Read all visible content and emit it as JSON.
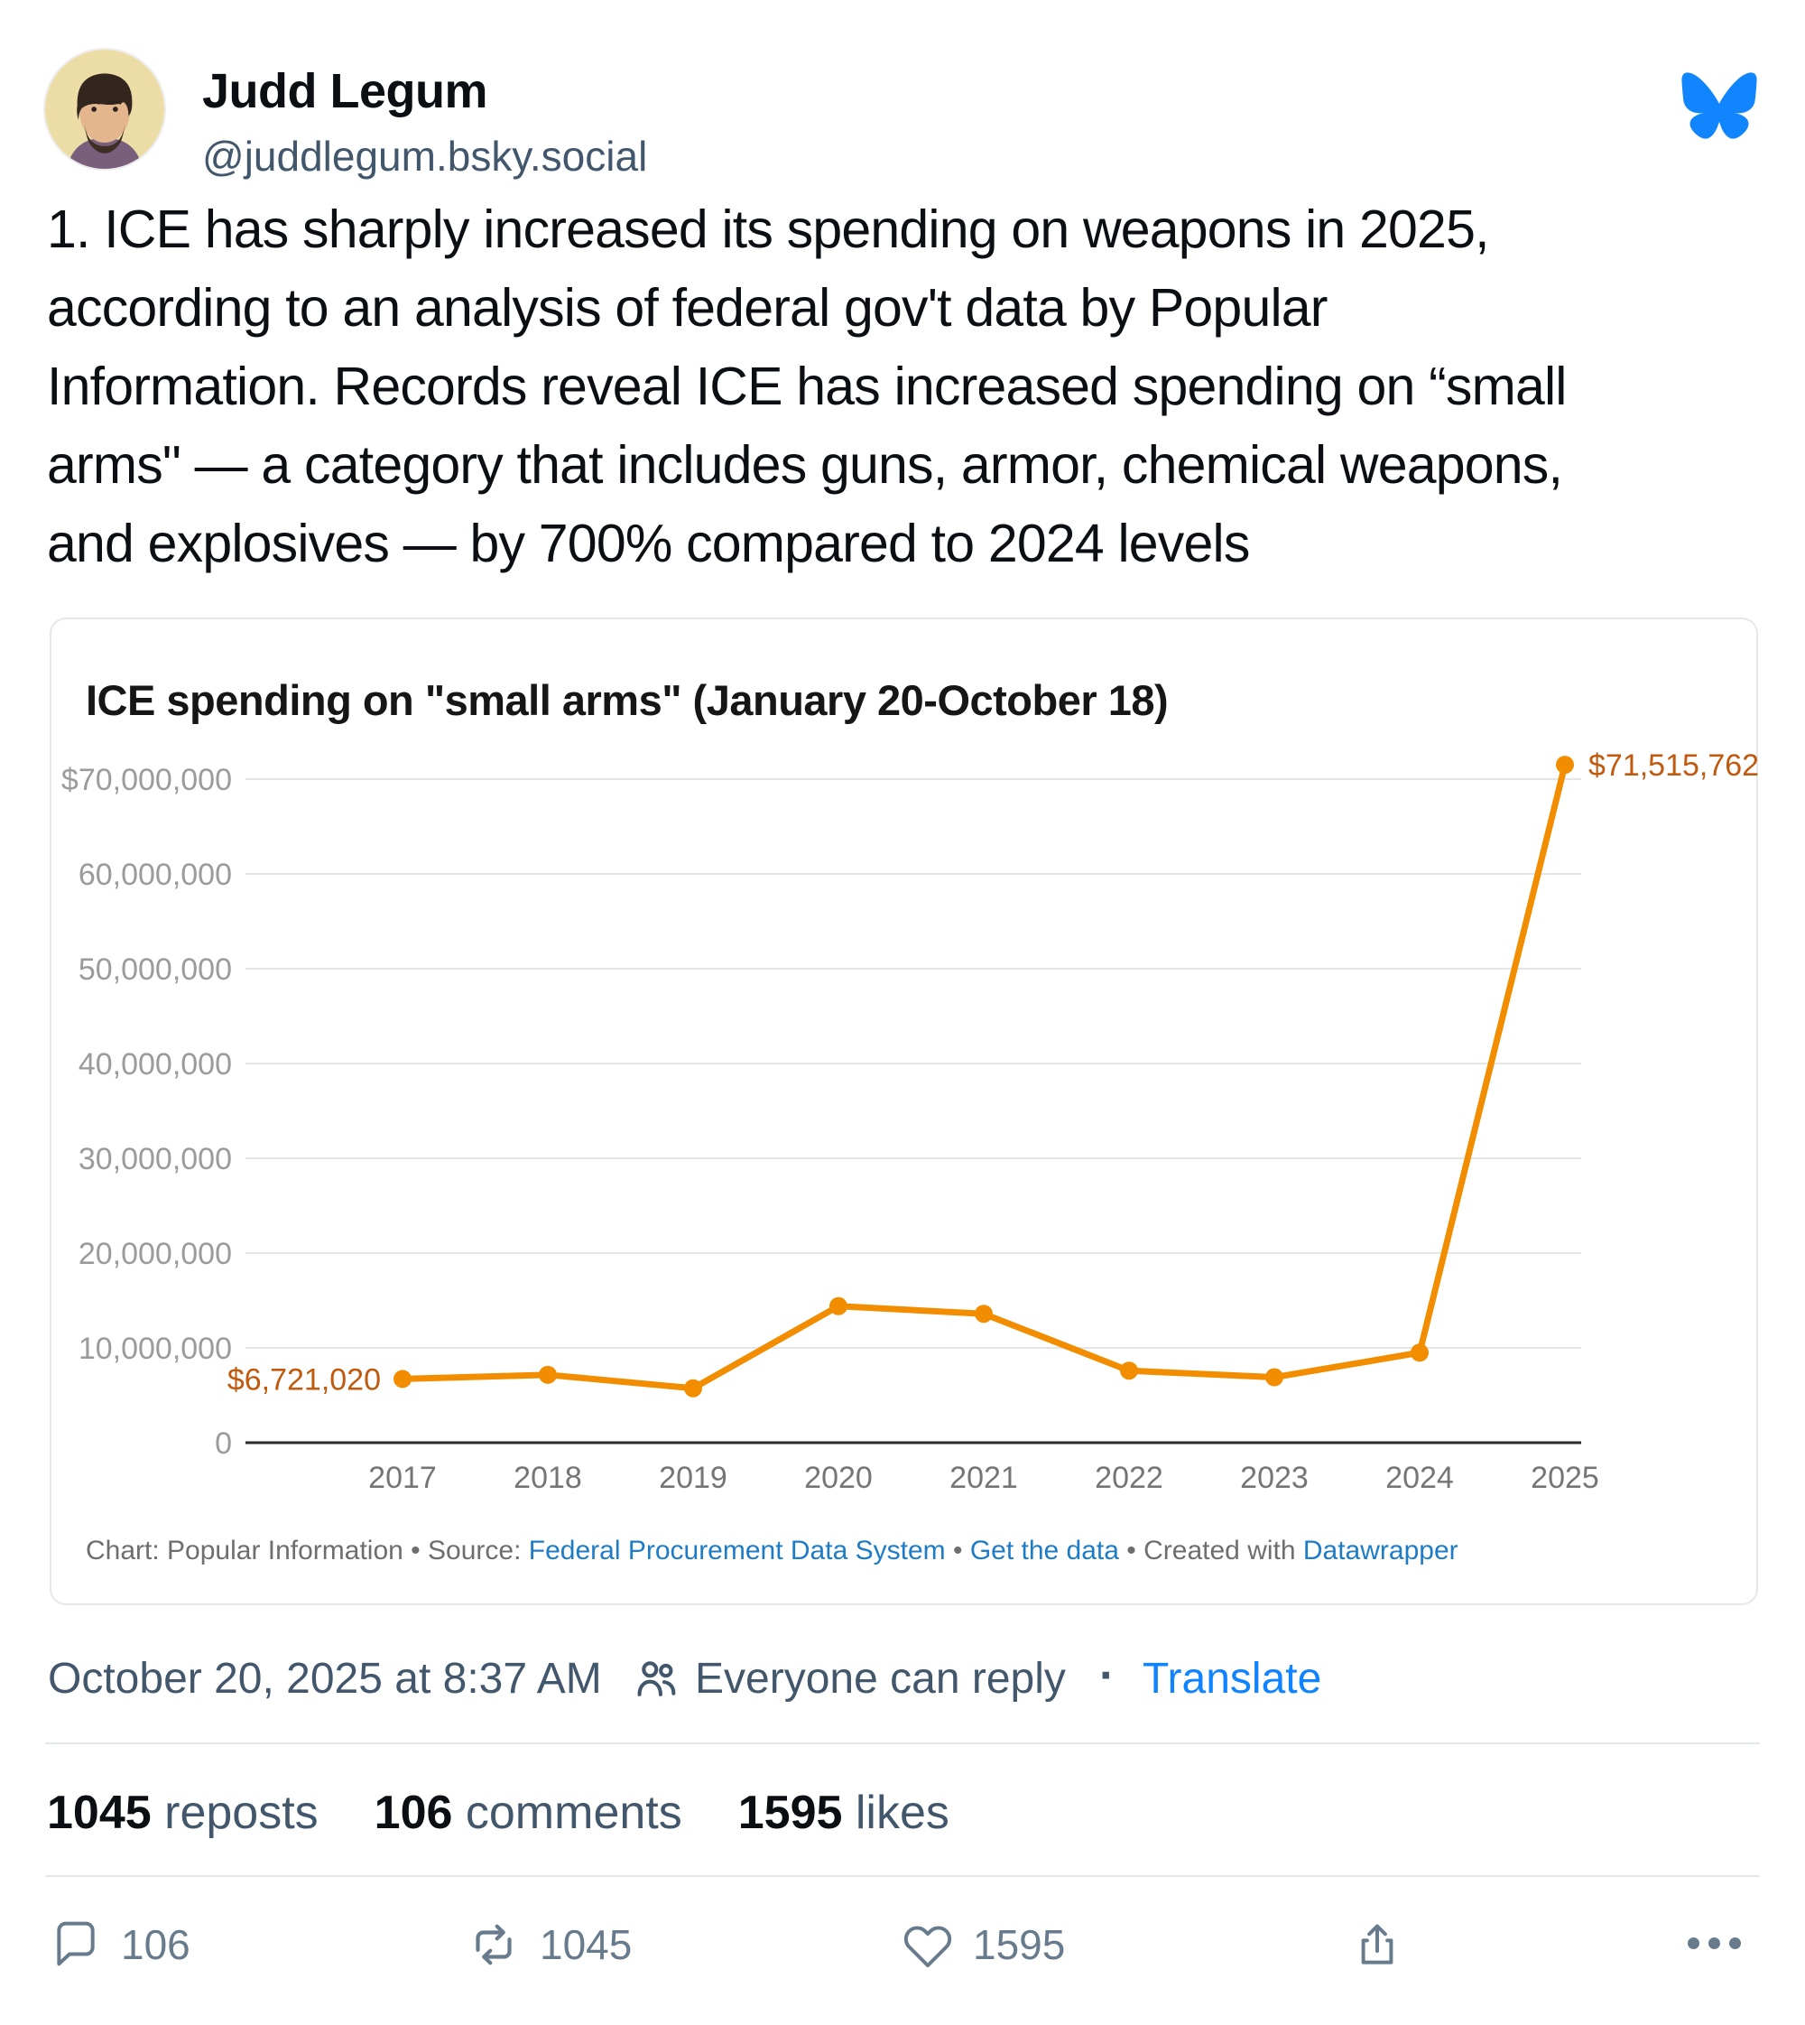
{
  "header": {
    "display_name": "Judd Legum",
    "handle": "@juddlegum.bsky.social",
    "logo_icon": "bluesky-butterfly",
    "logo_color": "#1185fe"
  },
  "post": {
    "lines": [
      "1. ICE has sharply increased its spending on weapons in 2025,",
      "according to an analysis of federal gov't data by Popular",
      "Information. Records reveal ICE has increased spending on “small",
      "arms\" — a category that includes guns, armor, chemical weapons,",
      "and explosives — by 700% compared to 2024 levels"
    ]
  },
  "chart_data": {
    "type": "line",
    "title": "ICE spending on \"small arms\" (January 20-October 18)",
    "categories": [
      "2017",
      "2018",
      "2019",
      "2020",
      "2021",
      "2022",
      "2023",
      "2024",
      "2025"
    ],
    "values": [
      6721020,
      7160000,
      5740000,
      14400000,
      13600000,
      7600000,
      6900000,
      9500000,
      71515762
    ],
    "ylim": [
      0,
      70000000
    ],
    "grid": "horizontal",
    "legend": "none",
    "yticks": [
      {
        "value": 70000000,
        "label": "$70,000,000"
      },
      {
        "value": 60000000,
        "label": "60,000,000"
      },
      {
        "value": 50000000,
        "label": "50,000,000"
      },
      {
        "value": 40000000,
        "label": "40,000,000"
      },
      {
        "value": 30000000,
        "label": "30,000,000"
      },
      {
        "value": 20000000,
        "label": "20,000,000"
      },
      {
        "value": 10000000,
        "label": "10,000,000"
      },
      {
        "value": 0,
        "label": "0"
      }
    ],
    "point_labels": [
      {
        "category": "2017",
        "text": "$6,721,020"
      },
      {
        "category": "2025",
        "text": "$71,515,762"
      }
    ],
    "line_color": "#f28d00",
    "point_label_color": "#c05a0e",
    "grid_color": "#e5e5e5",
    "axis_color": "#2b2b2b",
    "ytick_label_color": "#9b9b9b",
    "xtick_label_color": "#757575"
  },
  "chart_footer": {
    "parts": [
      {
        "text": "Chart: Popular Information",
        "link": false
      },
      {
        "text": " • ",
        "link": false
      },
      {
        "text": "Source: ",
        "link": false
      },
      {
        "text": "Federal Procurement Data System",
        "link": true
      },
      {
        "text": " • ",
        "link": false
      },
      {
        "text": "Get the data",
        "link": true
      },
      {
        "text": " • ",
        "link": false
      },
      {
        "text": "Created with ",
        "link": false
      },
      {
        "text": "Datawrapper",
        "link": true
      }
    ]
  },
  "meta_row": {
    "timestamp": "October 20, 2025 at 8:37 AM",
    "reply_setting": "Everyone can reply",
    "separator": "·",
    "translate_label": "Translate"
  },
  "stats": [
    {
      "value": "1045",
      "label": "reposts"
    },
    {
      "value": "106",
      "label": "comments"
    },
    {
      "value": "1595",
      "label": "likes"
    }
  ],
  "actions": {
    "comment_count": "106",
    "repost_count": "1045",
    "like_count": "1595"
  }
}
